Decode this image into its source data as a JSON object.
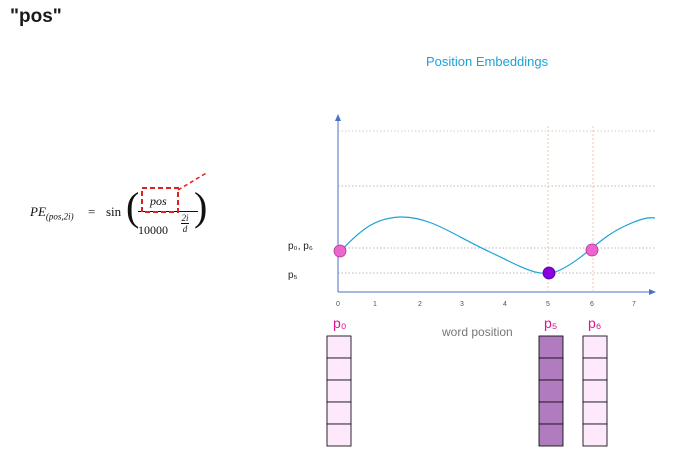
{
  "title": "\"pos\"",
  "chart_title": "Position Embeddings",
  "formula": {
    "lhs": "PE",
    "lhs_sub": "(pos,2i)",
    "equals": "=",
    "function": "sin",
    "numerator": "pos",
    "denominator_base": "10000",
    "exponent_num": "2i",
    "exponent_den": "d"
  },
  "y_labels": {
    "p0_p6": "p₀, p₆",
    "p5": "p₅"
  },
  "x_ticks": [
    "0",
    "1",
    "2",
    "3",
    "4",
    "5",
    "6",
    "7"
  ],
  "x_label": "word position",
  "vector_labels": [
    "p₀",
    "p₅",
    "p₆"
  ],
  "colors": {
    "curve": "#1aa3d9",
    "point_p0_p6": "#ee66cc",
    "point_p5": "#8800dd",
    "vector_light": "#fde9fb",
    "vector_dark": "#b07cbf",
    "highlight": "#e0148c",
    "dashed_box": "#e02020"
  },
  "chart_data": {
    "type": "line",
    "x_ticks": [
      0,
      1,
      2,
      3,
      4,
      5,
      6,
      7
    ],
    "highlighted_points": [
      {
        "x": 0,
        "label": "p₀"
      },
      {
        "x": 5,
        "label": "p₅"
      },
      {
        "x": 6,
        "label": "p₆"
      }
    ]
  }
}
